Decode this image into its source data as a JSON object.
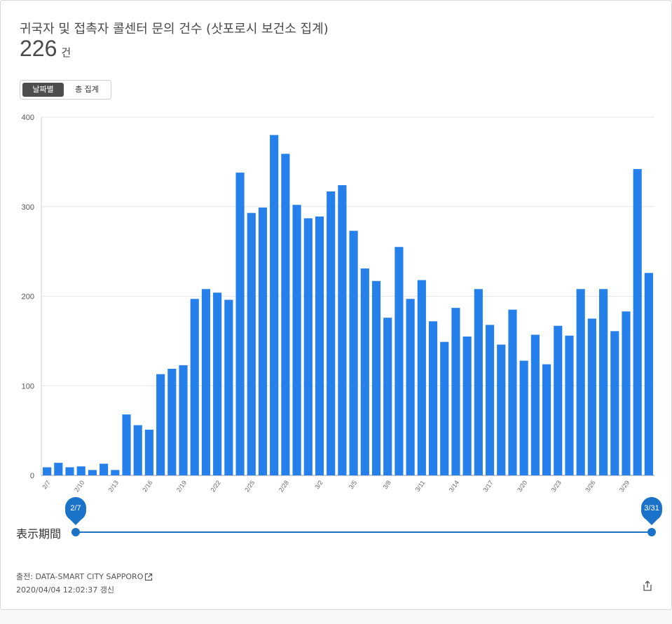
{
  "header": {
    "title": "귀국자 및 접촉자 콜센터 문의 건수 (삿포로시 보건소 집계)",
    "total_value": "226",
    "total_unit": "건"
  },
  "toggle": {
    "daily_label": "날짜별",
    "cumulative_label": "총 집계",
    "selected": "daily"
  },
  "slider": {
    "label": "表示期間",
    "start_label": "2/7",
    "end_label": "3/31",
    "color": "#1a73c9"
  },
  "footer": {
    "source_label": "출전: DATA-SMART CITY SAPPORO",
    "updated": "2020/04/04 12:02:37 갱신"
  },
  "icons": {
    "external_link": "external-link-icon",
    "share": "share-icon"
  },
  "chart_data": {
    "type": "bar",
    "bar_color": "#2680eb",
    "ylim": [
      0,
      400
    ],
    "yticks": [
      0,
      100,
      200,
      300,
      400
    ],
    "categories": [
      "2/7",
      "2/8",
      "2/9",
      "2/10",
      "2/11",
      "2/12",
      "2/13",
      "2/14",
      "2/15",
      "2/16",
      "2/17",
      "2/18",
      "2/19",
      "2/20",
      "2/21",
      "2/22",
      "2/23",
      "2/24",
      "2/25",
      "2/26",
      "2/27",
      "2/28",
      "2/29",
      "3/1",
      "3/2",
      "3/3",
      "3/4",
      "3/5",
      "3/6",
      "3/7",
      "3/8",
      "3/9",
      "3/10",
      "3/11",
      "3/12",
      "3/13",
      "3/14",
      "3/15",
      "3/16",
      "3/17",
      "3/18",
      "3/19",
      "3/20",
      "3/21",
      "3/22",
      "3/23",
      "3/24",
      "3/25",
      "3/26",
      "3/27",
      "3/28",
      "3/29",
      "3/30",
      "3/31"
    ],
    "values": [
      9,
      14,
      9,
      10,
      6,
      13,
      6,
      68,
      56,
      51,
      113,
      119,
      123,
      197,
      208,
      204,
      196,
      338,
      293,
      299,
      380,
      359,
      302,
      287,
      289,
      317,
      324,
      273,
      231,
      217,
      176,
      255,
      197,
      218,
      172,
      149,
      187,
      155,
      208,
      168,
      146,
      185,
      128,
      157,
      124,
      167,
      156,
      208,
      175,
      208,
      161,
      183,
      342,
      226
    ],
    "xtick_labels": [
      "2/7",
      "2/10",
      "2/13",
      "2/16",
      "2/19",
      "2/22",
      "2/25",
      "2/28",
      "3/2",
      "3/5",
      "3/8",
      "3/11",
      "3/14",
      "3/17",
      "3/20",
      "3/23",
      "3/26",
      "3/29"
    ],
    "grid": true
  }
}
